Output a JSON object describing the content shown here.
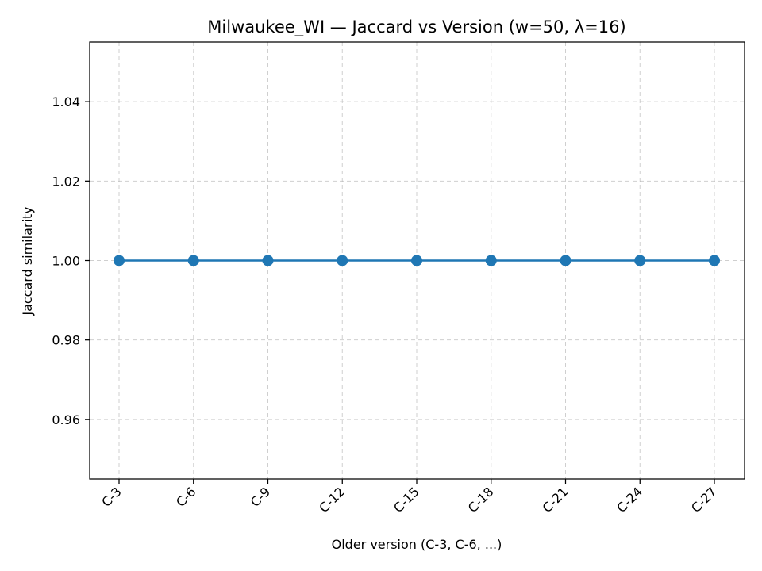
{
  "chart_data": {
    "type": "line",
    "title": "Milwaukee_WI — Jaccard vs Version (w=50, λ=16)",
    "xlabel": "Older version (C-3, C-6, ...)",
    "ylabel": "Jaccard similarity",
    "categories": [
      "C-3",
      "C-6",
      "C-9",
      "C-12",
      "C-15",
      "C-18",
      "C-21",
      "C-24",
      "C-27"
    ],
    "series": [
      {
        "values": [
          1.0,
          1.0,
          1.0,
          1.0,
          1.0,
          1.0,
          1.0,
          1.0,
          1.0
        ],
        "color": "#1f77b4",
        "marker": "circle"
      }
    ],
    "yticks": [
      0.96,
      0.98,
      1.0,
      1.02,
      1.04
    ],
    "ytick_labels": [
      "0.96",
      "0.98",
      "1.00",
      "1.02",
      "1.04"
    ],
    "ylim": [
      0.945,
      1.055
    ],
    "grid": true,
    "legend": "none"
  }
}
